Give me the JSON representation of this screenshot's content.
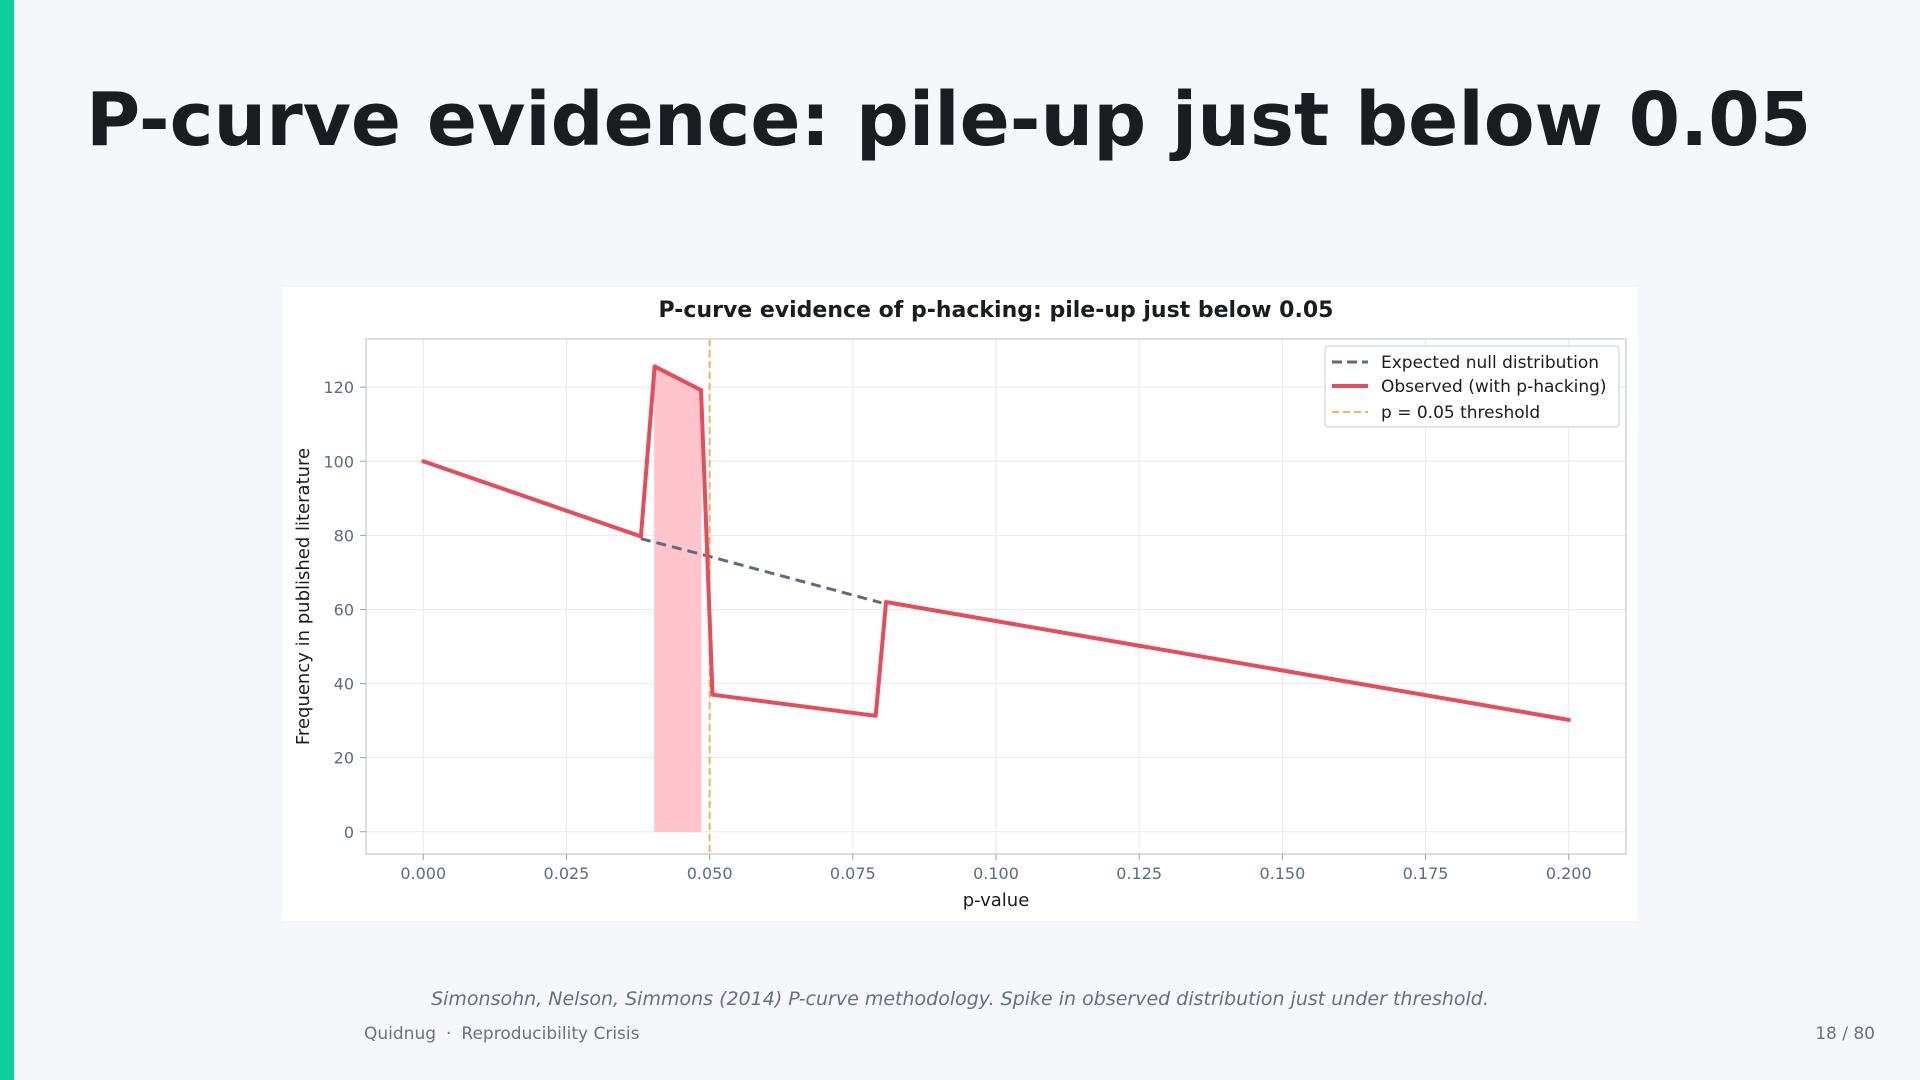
{
  "slide": {
    "title": "P-curve evidence: pile-up just below 0.05",
    "caption": "Simonsohn, Nelson, Simmons (2014) P-curve methodology. Spike in observed distribution just under threshold.",
    "footer_brand": "Quidnug",
    "footer_separator": "·",
    "footer_topic": "Reproducibility Crisis",
    "page_indicator": "18 / 80"
  },
  "colors": {
    "accent": "#0ccf9e",
    "expected": "#5f6b7c",
    "observed": "#e84b5a",
    "shade": "#ffc4cc",
    "threshold": "#e8b95a"
  },
  "chart_data": {
    "type": "line",
    "title": "P-curve evidence of p-hacking: pile-up just below 0.05",
    "xlabel": "p-value",
    "ylabel": "Frequency in published literature",
    "xlim": [
      -0.01,
      0.21
    ],
    "ylim": [
      -6,
      133
    ],
    "x_ticks": [
      0.0,
      0.025,
      0.05,
      0.075,
      0.1,
      0.125,
      0.15,
      0.175,
      0.2
    ],
    "x_tick_labels": [
      "0.000",
      "0.025",
      "0.050",
      "0.075",
      "0.100",
      "0.125",
      "0.150",
      "0.175",
      "0.200"
    ],
    "y_ticks": [
      0,
      20,
      40,
      60,
      80,
      100,
      120
    ],
    "y_tick_labels": [
      "0",
      "20",
      "40",
      "60",
      "80",
      "100",
      "120"
    ],
    "grid": true,
    "legend_position": "top-right",
    "series": [
      {
        "name": "Expected null distribution",
        "style": "dashed",
        "x": [
          0.038,
          0.05,
          0.08
        ],
        "y": [
          79.1,
          74.3,
          61.8
        ]
      },
      {
        "name": "Observed (with p-hacking)",
        "style": "solid",
        "x": [
          0.0,
          0.038,
          0.0404,
          0.0485,
          0.0505,
          0.079,
          0.0808,
          0.2
        ],
        "y": [
          100.0,
          79.7,
          125.6,
          119.2,
          37.0,
          31.3,
          62.0,
          30.2
        ]
      }
    ],
    "shaded_region": {
      "x_start": 0.0404,
      "x_end": 0.0485,
      "y_bottom": 0
    },
    "threshold": {
      "name": "p = 0.05 threshold",
      "x": 0.05
    }
  }
}
